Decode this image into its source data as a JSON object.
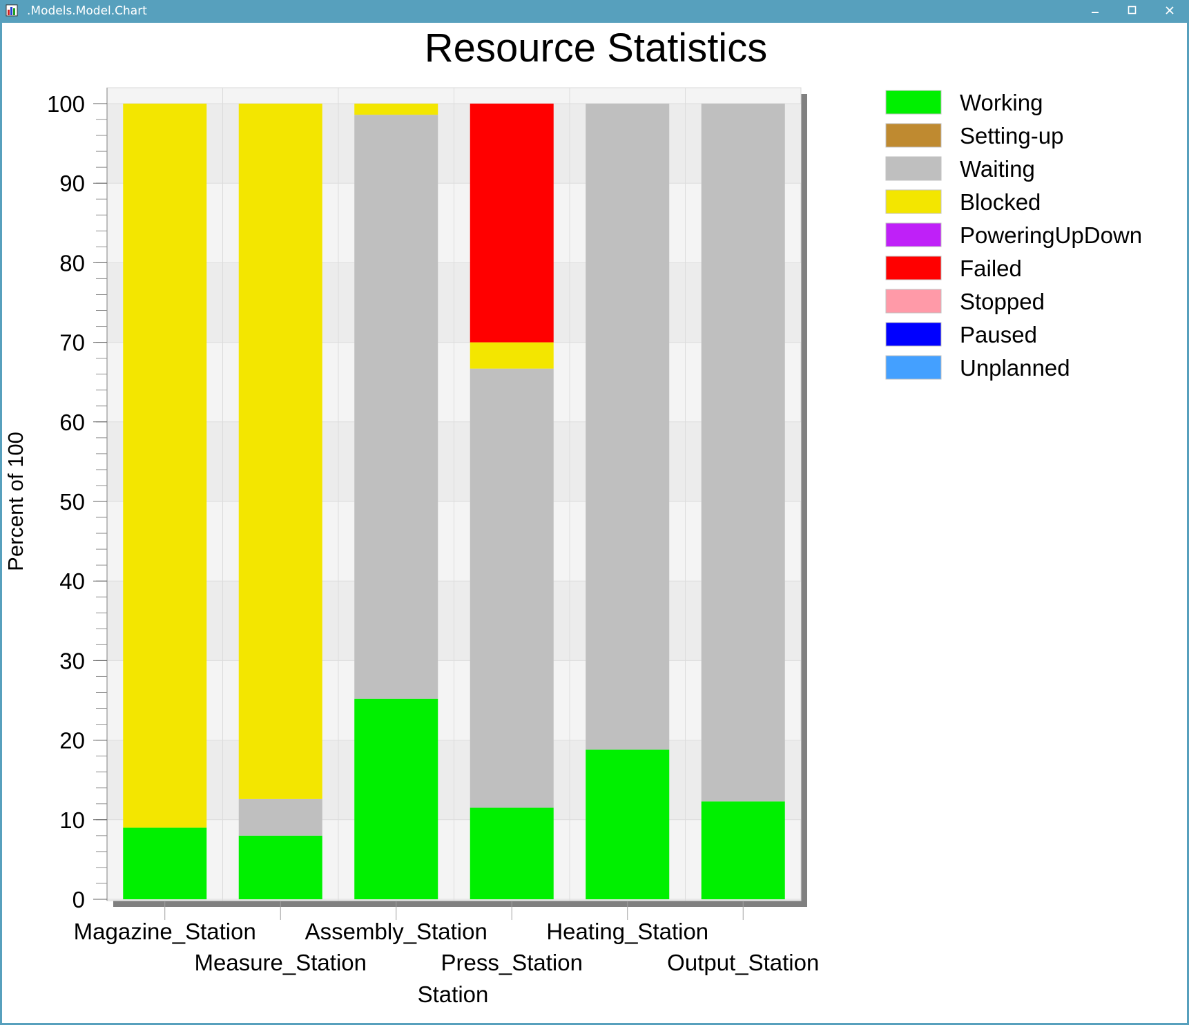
{
  "window": {
    "title": ".Models.Model.Chart",
    "titlebar_color": "#57a0bd",
    "controls": [
      "minimize-icon",
      "maximize-icon",
      "close-icon"
    ]
  },
  "chart_data": {
    "type": "bar",
    "stacked": true,
    "title": "Resource Statistics",
    "xlabel": "Station",
    "ylabel": "Percent of 100",
    "ylim": [
      0,
      100
    ],
    "yticks": [
      0,
      10,
      20,
      30,
      40,
      50,
      60,
      70,
      80,
      90,
      100
    ],
    "grid": true,
    "legend_position": "right",
    "categories": [
      "Magazine_Station",
      "Measure_Station",
      "Assembly_Station",
      "Press_Station",
      "Heating_Station",
      "Output_Station"
    ],
    "series": [
      {
        "name": "Working",
        "color": "#00f000",
        "values": [
          9,
          8,
          25.2,
          11.5,
          18.8,
          12.3
        ]
      },
      {
        "name": "Setting-up",
        "color": "#bf8a30",
        "values": [
          0,
          0,
          0,
          0,
          0,
          0
        ]
      },
      {
        "name": "Waiting",
        "color": "#bfbfbf",
        "values": [
          0,
          4.6,
          73.4,
          55.2,
          81.2,
          87.7
        ]
      },
      {
        "name": "Blocked",
        "color": "#f3e600",
        "values": [
          91,
          87.4,
          1.4,
          3.3,
          0,
          0
        ]
      },
      {
        "name": "PoweringUpDown",
        "color": "#bf20f8",
        "values": [
          0,
          0,
          0,
          0,
          0,
          0
        ]
      },
      {
        "name": "Failed",
        "color": "#ff0000",
        "values": [
          0,
          0,
          0,
          30,
          0,
          0
        ]
      },
      {
        "name": "Stopped",
        "color": "#ff9aa8",
        "values": [
          0,
          0,
          0,
          0,
          0,
          0
        ]
      },
      {
        "name": "Paused",
        "color": "#0000ff",
        "values": [
          0,
          0,
          0,
          0,
          0,
          0
        ]
      },
      {
        "name": "Unplanned",
        "color": "#44a0ff",
        "values": [
          0,
          0,
          0,
          0,
          0,
          0
        ]
      }
    ]
  }
}
